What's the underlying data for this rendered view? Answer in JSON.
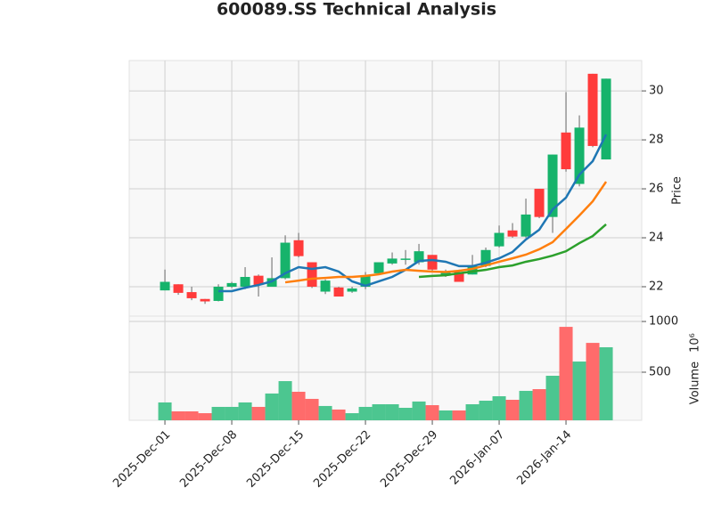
{
  "chart_data": {
    "type": "candlestick",
    "title": "600089.SS Technical Analysis",
    "categories": [
      "2025-Dec-01",
      null,
      null,
      null,
      null,
      "2025-Dec-08",
      null,
      null,
      null,
      null,
      "2025-Dec-15",
      null,
      null,
      null,
      null,
      "2025-Dec-22",
      null,
      null,
      null,
      null,
      "2025-Dec-29",
      null,
      null,
      null,
      null,
      "2026-Jan-07",
      null,
      null,
      null,
      null,
      "2026-Jan-14",
      null,
      null,
      null
    ],
    "open": [
      21.85,
      22.1,
      21.78,
      21.5,
      21.42,
      22.0,
      22.0,
      22.45,
      22.0,
      22.35,
      23.9,
      23.0,
      21.8,
      21.97,
      21.8,
      22.0,
      22.55,
      22.95,
      23.1,
      23.0,
      23.3,
      22.45,
      22.6,
      22.5,
      22.85,
      23.65,
      24.3,
      24.05,
      26.0,
      24.85,
      28.3,
      26.2,
      30.7,
      27.2
    ],
    "high": [
      22.7,
      22.1,
      22.0,
      21.5,
      22.1,
      22.2,
      22.8,
      22.5,
      23.2,
      24.1,
      24.2,
      23.0,
      22.3,
      22.0,
      22.0,
      22.6,
      23.0,
      23.4,
      23.5,
      23.75,
      23.3,
      22.7,
      22.7,
      23.3,
      23.6,
      24.5,
      24.6,
      25.6,
      26.0,
      27.4,
      29.95,
      29.0,
      30.7,
      30.5
    ],
    "low": [
      21.85,
      21.67,
      21.45,
      21.3,
      21.4,
      21.95,
      21.9,
      21.6,
      22.0,
      22.3,
      23.2,
      21.95,
      21.7,
      21.6,
      21.75,
      21.9,
      22.5,
      22.9,
      22.9,
      22.9,
      22.6,
      22.4,
      22.2,
      22.5,
      22.8,
      23.6,
      24.0,
      24.0,
      24.8,
      24.2,
      26.7,
      26.1,
      27.7,
      27.2
    ],
    "close": [
      22.2,
      21.75,
      21.53,
      21.4,
      22.0,
      22.15,
      22.4,
      22.07,
      22.35,
      23.8,
      23.25,
      22.0,
      22.25,
      21.6,
      21.93,
      22.45,
      23.0,
      23.15,
      23.15,
      23.45,
      22.7,
      22.6,
      22.2,
      22.85,
      23.5,
      24.2,
      24.05,
      24.95,
      24.85,
      27.4,
      26.8,
      28.5,
      27.75,
      30.5
    ],
    "up_color": "#16b36b",
    "down_color": "#ff3b3b",
    "ylabel": "Price",
    "ylim": [
      20.8,
      31.24
    ],
    "yticks": [
      22,
      24,
      26,
      28,
      30
    ],
    "grid": true,
    "lines": [
      {
        "color": "#1f77b4",
        "values": [
          null,
          null,
          null,
          null,
          21.82,
          21.82,
          21.96,
          22.07,
          22.22,
          22.55,
          22.8,
          22.73,
          22.8,
          22.62,
          22.22,
          22.04,
          22.22,
          22.4,
          22.69,
          23.05,
          23.09,
          23.02,
          22.84,
          22.84,
          22.98,
          23.16,
          23.42,
          23.93,
          24.33,
          25.16,
          25.64,
          26.58,
          27.13,
          28.22
        ]
      },
      {
        "color": "#ff7f0e",
        "values": [
          null,
          null,
          null,
          null,
          null,
          null,
          null,
          null,
          null,
          22.18,
          22.25,
          22.33,
          22.36,
          22.4,
          22.4,
          22.44,
          22.51,
          22.62,
          22.69,
          22.65,
          22.62,
          22.6,
          22.65,
          22.73,
          22.87,
          23.02,
          23.16,
          23.31,
          23.53,
          23.82,
          24.36,
          24.91,
          25.49,
          26.29
        ]
      },
      {
        "color": "#2ca02c",
        "values": [
          null,
          null,
          null,
          null,
          null,
          null,
          null,
          null,
          null,
          null,
          null,
          null,
          null,
          null,
          null,
          null,
          null,
          null,
          null,
          22.4,
          22.44,
          22.47,
          22.55,
          22.62,
          22.69,
          22.8,
          22.87,
          23.02,
          23.13,
          23.27,
          23.45,
          23.78,
          24.07,
          24.55
        ]
      }
    ],
    "volume": {
      "values": [
        202,
        114,
        114,
        96,
        158,
        158,
        202,
        158,
        290,
        412,
        307,
        237,
        167,
        132,
        96,
        158,
        184,
        184,
        149,
        211,
        175,
        123,
        123,
        184,
        219,
        263,
        228,
        316,
        333,
        465,
        947,
        605,
        789,
        746
      ],
      "up_color": "#4cc690",
      "down_color": "#ff6b6b",
      "ylabel": "Volume",
      "scale_label": "10⁶",
      "ylim": [
        26,
        1053
      ],
      "yticks": [
        500,
        1000
      ]
    }
  }
}
